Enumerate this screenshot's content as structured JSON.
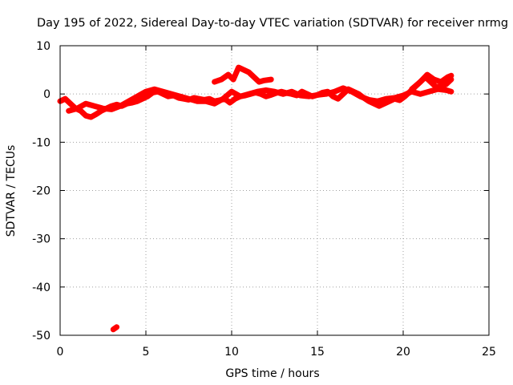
{
  "chart_data": {
    "type": "line",
    "title": "Day 195 of 2022, Sidereal Day-to-day VTEC variation (SDTVAR) for receiver nrmg",
    "xlabel": "GPS time / hours",
    "ylabel": "SDTVAR / TECUs",
    "xlim": [
      0,
      25
    ],
    "ylim": [
      -50,
      10
    ],
    "xticks": [
      "0",
      "5",
      "10",
      "15",
      "20",
      "25"
    ],
    "yticks": [
      "10",
      "0",
      "-10",
      "-20",
      "-30",
      "-40",
      "-50"
    ],
    "grid": true,
    "legend": "none",
    "color": "#ff0000",
    "series": [
      {
        "name": "main-trace",
        "x": [
          0.0,
          0.3,
          0.6,
          0.9,
          1.2,
          1.5,
          1.8,
          2.1,
          2.4,
          2.7,
          3.0,
          3.3,
          3.6,
          3.9,
          4.2,
          4.5,
          4.8,
          5.1,
          5.4,
          5.7,
          6.0,
          6.3,
          6.6,
          6.9,
          7.2,
          7.5,
          7.8,
          8.1,
          8.4,
          8.7,
          9.0,
          9.3,
          9.6,
          9.9,
          10.2,
          10.5,
          10.8,
          11.1,
          11.4,
          11.7,
          12.0,
          12.3,
          12.6,
          12.9,
          13.2,
          13.5,
          13.8,
          14.1,
          14.4,
          14.7,
          15.0,
          15.3,
          15.6,
          15.9,
          16.2,
          16.5,
          16.8,
          17.1,
          17.4,
          17.7,
          18.0,
          18.3,
          18.6,
          18.9,
          19.2,
          19.5,
          19.8,
          20.1,
          20.4,
          20.7,
          21.0,
          21.3,
          21.6,
          21.9,
          22.2,
          22.5,
          22.8
        ],
        "y": [
          -1.5,
          -1.0,
          -2.0,
          -3.0,
          -3.5,
          -4.5,
          -4.8,
          -4.2,
          -3.5,
          -3.0,
          -2.5,
          -2.2,
          -2.5,
          -2.0,
          -1.8,
          -1.5,
          -1.0,
          -0.5,
          0.3,
          0.5,
          0.0,
          -0.5,
          -0.3,
          -0.8,
          -1.0,
          -1.2,
          -0.8,
          -1.0,
          -1.2,
          -1.0,
          -1.5,
          -1.3,
          -1.0,
          -1.8,
          -1.0,
          -0.5,
          -0.3,
          0.0,
          0.3,
          0.0,
          -0.5,
          -0.2,
          0.2,
          0.5,
          0.2,
          0.0,
          -0.3,
          0.5,
          0.0,
          -0.5,
          -0.2,
          0.3,
          0.5,
          -0.5,
          -1.0,
          0.0,
          1.0,
          0.5,
          0.0,
          -0.8,
          -1.5,
          -2.0,
          -2.5,
          -2.0,
          -1.5,
          -1.0,
          -1.3,
          -0.5,
          0.5,
          1.5,
          2.5,
          3.5,
          2.5,
          1.5,
          1.5,
          2.0,
          3.0
        ]
      },
      {
        "name": "upper-trace",
        "x": [
          0.5,
          1.0,
          1.5,
          2.0,
          2.5,
          3.0,
          3.5,
          4.0,
          4.5,
          5.0,
          5.5,
          6.0,
          6.5,
          7.0,
          7.5,
          8.0,
          8.5,
          9.0,
          9.5,
          10.0,
          10.5,
          11.0,
          11.5,
          12.0,
          12.5,
          13.0,
          13.5,
          14.0,
          14.5,
          15.0,
          15.5,
          16.0,
          16.5,
          17.0,
          17.5,
          18.0,
          18.5,
          19.0,
          19.5,
          20.0,
          20.5,
          21.0,
          21.5,
          22.0,
          22.5,
          22.8
        ],
        "y": [
          -3.5,
          -3.0,
          -2.0,
          -2.5,
          -3.0,
          -3.2,
          -2.5,
          -1.5,
          -0.5,
          0.5,
          1.0,
          0.5,
          0.0,
          -0.5,
          -1.0,
          -1.5,
          -1.5,
          -2.0,
          -1.0,
          0.5,
          -0.5,
          0.0,
          0.5,
          0.8,
          0.5,
          0.0,
          0.5,
          -0.3,
          -0.5,
          -0.2,
          0.0,
          0.5,
          1.2,
          0.5,
          -0.5,
          -1.2,
          -1.5,
          -1.0,
          -0.8,
          -0.3,
          0.5,
          0.0,
          0.5,
          1.0,
          0.8,
          0.5
        ]
      },
      {
        "name": "hump-trace",
        "x": [
          9.0,
          9.4,
          9.8,
          10.1,
          10.4,
          10.7,
          11.0,
          11.3,
          11.6,
          11.9,
          12.3
        ],
        "y": [
          2.5,
          3.0,
          4.0,
          3.0,
          5.5,
          5.0,
          4.5,
          3.5,
          2.5,
          2.8,
          3.0
        ]
      },
      {
        "name": "late-upper-trace",
        "x": [
          20.5,
          21.0,
          21.4,
          21.8,
          22.2,
          22.6,
          22.8
        ],
        "y": [
          1.0,
          2.5,
          4.0,
          3.0,
          2.5,
          3.5,
          3.8
        ]
      },
      {
        "name": "outlier-trace",
        "x": [
          3.1,
          3.3
        ],
        "y": [
          -48.8,
          -48.3
        ]
      }
    ]
  }
}
